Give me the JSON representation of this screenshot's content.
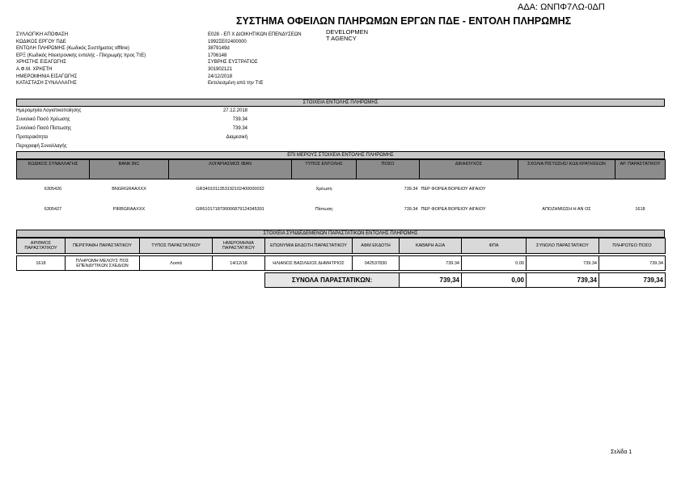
{
  "ada": "ΑΔΑ: ΩΝΠΦ7ΛΩ-0ΔΠ",
  "title": "ΣΥΣΤΗΜΑ ΟΦΕΙΛΩΝ ΠΛΗΡΩΜΩΝ ΕΡΓΩΝ ΠΔΕ - ΕΝΤΟΛΗ ΠΛΗΡΩΜΗΣ",
  "logo": {
    "line1": "DEVELOPMEN",
    "line2": "T AGENCY"
  },
  "info": [
    {
      "label": "ΣΥΛΛΟΓΙΚΗ ΑΠΟΦΑΣΗ",
      "value": "Ε028 - ΕΠ Χ  ΔΙΟΙΚΗΤΙΚΩΝ ΕΠΕΝΔΥΣΕΩΝ"
    },
    {
      "label": "ΚΩΔΙΚΟΣ ΕΡΓΟΥ ΠΔΕ",
      "value": "1992ΣΕ02400000"
    },
    {
      "label": "ΕΝΤΟΛΗ ΠΛΗΡΩΜΗΣ (Κωδικός Συστήματος offline)",
      "value": "3879149d"
    },
    {
      "label": "ΕΡΞ (Κωδικός Ηλεκτρονικής εντολής - Πληρωμής προς ΤτΕ)",
      "value": "1706148"
    },
    {
      "label": "ΧΡΗΣΤΗΣ ΕΙΣΑΓΩΓΗΣ",
      "value": "ΣΥΒΡΗΣ ΕΥΣΤΡΑΤΙΟΣ"
    },
    {
      "label": "Α.Φ.Μ. ΧΡΗΣΤΗ",
      "value": "301902121"
    },
    {
      "label": "ΗΜΕΡΟΜΗΝΙΑ ΕΙΣΑΓΩΓΗΣ",
      "value": "24/12/2018"
    },
    {
      "label": "ΚΑΤΑΣΤΑΣΗ ΣΥΝΑΛΛΑΓΗΣ",
      "value": "Εκτελεσμένη από την ΤτΕ"
    }
  ],
  "section1": {
    "title": "ΣΤΟΙΧΕΙΑ ΕΝΤΟΛΗΣ ΠΛΗΡΩΜΗΣ",
    "rows": [
      {
        "label": "Ημερομηνία Λογιστικοποίησης",
        "value": "27.12.2018"
      },
      {
        "label": "Συνολικό Ποσό Χρέωσης",
        "value": "739.34"
      },
      {
        "label": "Συνολικό Ποσό Πίστωσης",
        "value": "739.34"
      },
      {
        "label": "Προτεραιότητα",
        "value": "Διαμεσική"
      },
      {
        "label": "Περιγραφή Συναλλαγής",
        "value": ""
      }
    ]
  },
  "section2": {
    "title": "ΕΠΙ ΜΕΡΟΥΣ ΣΤΟΙΧΕΙΑ ΕΝΤΟΛΗΣ ΠΛΗΡΩΜΗΣ",
    "headers": [
      "ΚΩΔΙΚΟΣ ΣΥΝΑΛΛΑΓΗΣ",
      "BANK BIC",
      "ΛΟΓΑΡΙΑΣΜΟΣ IBAN",
      "ΤΥΠΟΣ ΕΝΤΟΛΗΣ",
      "ΠΟΣΟ",
      "ΔΙΚΑΙΟΥΧΟΣ",
      "ΣΧΟΛΙΑ ΠΙΣΤΩΣΗΣ/ ΚΩΔ ΚΡΑΤΗΣΕΩΝ",
      "ΑΡ. ΠΑΡΑΣΤΑΤΙΚΟΥ"
    ],
    "rows": [
      [
        "6305426",
        "BNGRGRAAXXX",
        "GR3401011353192102400000032",
        "Χρέωση",
        "739.34",
        "ΠΕΡ ΦΟΡΕΑ ΒΟΡΕΙΟΥ ΑΙΓΑΙΟΥ",
        "",
        ""
      ],
      [
        "6305427",
        "PIRBGRAAXXX",
        "GR6101718790006879124345301",
        "Πίστωση",
        "739.34",
        "ΠΕΡ ΦΟΡΕΑ ΒΟΡΕΙΟΥ ΑΙΓΑΙΟΥ",
        "ΑΠΟΖΗΜΙΩΣΗ Η ΑΝ ΟΣ",
        "1618"
      ]
    ]
  },
  "section3": {
    "title": "ΣΤΟΙΧΕΙΑ ΣΥΝΔΕΔΕΜΕΝΩΝ ΠΑΡΑΣΤΑΤΙΚΩΝ ΕΝΤΟΛΗΣ ΠΛΗΡΩΜΗΣ",
    "headers": [
      "ΑΡΙΘΜΟΣ ΠΑΡΑΣΤΑΤΙΚΟΥ",
      "ΠΕΡΙΓΡΑΦΗ ΠΑΡΑΣΤΑΤΙΚΟΥ",
      "ΤΥΠΟΣ ΠΑΡΑΣΤΑΤΙΚΟΥ",
      "ΗΜΕΡΟΜΗΝΙΑ ΠΑΡΑΣΤΑΤΙΚΟΥ",
      "ΕΠΩΝΥΜΙΑ ΕΚΔΟΤΗ ΠΑΡΑΣΤΑΤΙΚΟΥ",
      "ΑΦΜ ΕΚΔΟΤΗ",
      "ΚΑΘΑΡΗ ΑΞΙΑ",
      "ΦΠΑ",
      "ΣΥΝΟΛΟ ΠΑΡΑΣΤΑΤΙΚΟΥ",
      "ΠΛΗΡΩΤΕΟ ΠΟΣΟ"
    ],
    "rows": [
      [
        "1618",
        "ΠΛΗΡΩΜΗ ΜΕΛΟΥΣ ΠΟΣ ΕΠΕΝΔΥΤΙΚΩΝ ΣΧΕΔΙΩΝ",
        "Λοιπά",
        "14/12/18",
        "ΗΛΙΑΝΟΣ ΒΑΣΙΛΕΙΟΣ ΔΗΜΗΤΡΙΟΣ",
        "042537830",
        "739.34",
        "0.00",
        "739.34",
        "739.34"
      ]
    ],
    "totals": {
      "label": "ΣΥΝΟΛΑ ΠΑΡΑΣΤΑΤΙΚΩΝ:",
      "net": "739,34",
      "vat": "0,00",
      "total": "739,34",
      "payable": "739,34"
    }
  },
  "footer": {
    "page": "Σελίδα 1"
  }
}
